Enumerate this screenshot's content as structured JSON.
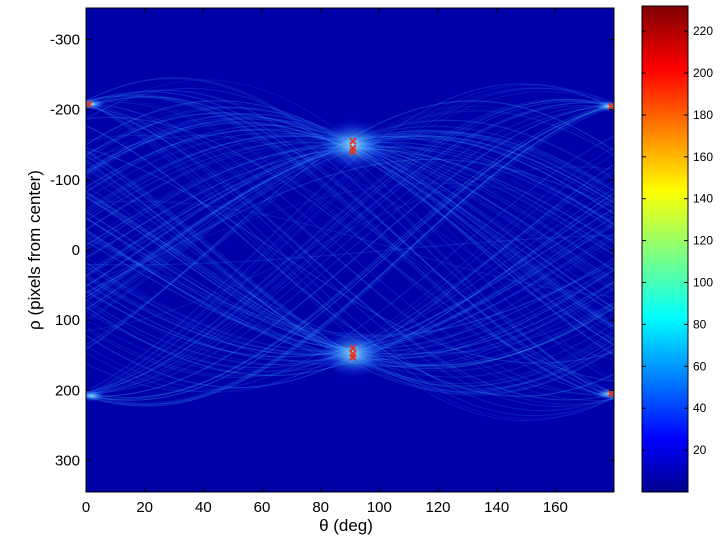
{
  "chart_data": {
    "type": "heatmap",
    "title": "",
    "xlabel": "θ (deg)",
    "ylabel": "ρ (pixels from center)",
    "xlim": [
      0,
      180
    ],
    "ylim": [
      -345,
      345
    ],
    "y_reversed": true,
    "x_ticks": [
      "0",
      "20",
      "40",
      "60",
      "80",
      "100",
      "120",
      "140",
      "160"
    ],
    "x_tick_values": [
      0,
      20,
      40,
      60,
      80,
      100,
      120,
      140,
      160
    ],
    "y_ticks": [
      "-300",
      "-200",
      "-100",
      "0",
      "100",
      "200",
      "300"
    ],
    "y_tick_values": [
      -300,
      -200,
      -100,
      0,
      100,
      200,
      300
    ],
    "colorbar": {
      "range": [
        0,
        232
      ],
      "colormap": "jet",
      "ticks": [
        "20",
        "40",
        "60",
        "80",
        "100",
        "120",
        "140",
        "160",
        "180",
        "200",
        "220"
      ],
      "tick_values": [
        20,
        40,
        60,
        80,
        100,
        120,
        140,
        160,
        180,
        200,
        220
      ]
    },
    "peaks": [
      {
        "theta": 1,
        "rho": -208
      },
      {
        "theta": 91,
        "rho": -155
      },
      {
        "theta": 91,
        "rho": -145
      },
      {
        "theta": 91,
        "rho": -140
      },
      {
        "theta": 91,
        "rho": 140
      },
      {
        "theta": 91,
        "rho": 148
      },
      {
        "theta": 91,
        "rho": 153
      },
      {
        "theta": 179,
        "rho": -205
      },
      {
        "theta": 179,
        "rho": 205
      }
    ],
    "peak_color": "#e8311f",
    "background_color": "#0000a8"
  }
}
